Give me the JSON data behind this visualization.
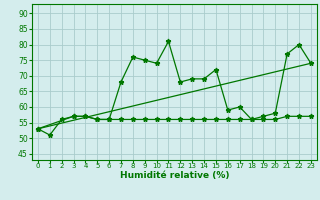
{
  "title": "",
  "xlabel": "Humidité relative (%)",
  "ylabel": "",
  "bg_color": "#d4eded",
  "grid_color": "#aacccc",
  "line_color": "#007700",
  "x_ticks": [
    0,
    1,
    2,
    3,
    4,
    5,
    6,
    7,
    8,
    9,
    10,
    11,
    12,
    13,
    14,
    15,
    16,
    17,
    18,
    19,
    20,
    21,
    22,
    23
  ],
  "y_ticks": [
    45,
    50,
    55,
    60,
    65,
    70,
    75,
    80,
    85,
    90
  ],
  "ylim": [
    43,
    93
  ],
  "xlim": [
    -0.5,
    23.5
  ],
  "line1_x": [
    0,
    1,
    2,
    3,
    4,
    5,
    6,
    7,
    8,
    9,
    10,
    11,
    12,
    13,
    14,
    15,
    16,
    17,
    18,
    19,
    20,
    21,
    22,
    23
  ],
  "line1_y": [
    53,
    51,
    56,
    57,
    57,
    56,
    56,
    68,
    76,
    75,
    74,
    81,
    68,
    69,
    69,
    72,
    59,
    60,
    56,
    57,
    58,
    77,
    80,
    74
  ],
  "line2_x": [
    0,
    3,
    4,
    5,
    6,
    7,
    8,
    9,
    10,
    11,
    12,
    13,
    14,
    15,
    16,
    17,
    18,
    19,
    20,
    21,
    22,
    23
  ],
  "line2_y": [
    53,
    57,
    57,
    56,
    56,
    56,
    56,
    56,
    56,
    56,
    56,
    56,
    56,
    56,
    56,
    56,
    56,
    56,
    56,
    57,
    57,
    57
  ],
  "line3_x": [
    0,
    23
  ],
  "line3_y": [
    53,
    74
  ]
}
